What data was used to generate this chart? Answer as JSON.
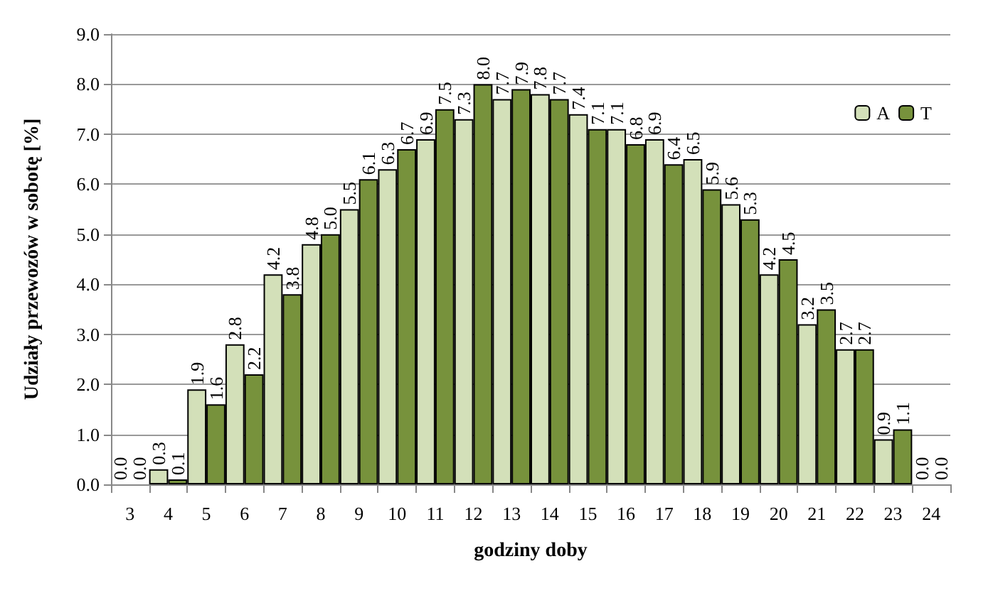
{
  "chart_data": {
    "type": "bar",
    "xlabel": "godziny doby",
    "ylabel": "Udziały przewozów w sobotę [%]",
    "categories": [
      "3",
      "4",
      "5",
      "6",
      "7",
      "8",
      "9",
      "10",
      "11",
      "12",
      "13",
      "14",
      "15",
      "16",
      "17",
      "18",
      "19",
      "20",
      "21",
      "22",
      "23",
      "24"
    ],
    "series": [
      {
        "name": "A",
        "color": "#d3e0b9",
        "values": [
          0,
          0.3,
          1.9,
          2.8,
          4.2,
          4.8,
          5.5,
          6.3,
          6.9,
          7.3,
          7.7,
          7.8,
          7.4,
          7.1,
          6.9,
          6.5,
          5.6,
          4.2,
          3.2,
          2.7,
          0.9,
          0
        ],
        "value_labels": [
          "0.0",
          "0.3",
          "1.9",
          "2.8",
          "4.2",
          "4.8",
          "5.5",
          "6.3",
          "6.9",
          "7.3",
          "7.7",
          "7.8",
          "7.4",
          "7.1",
          "6.9",
          "6.5",
          "5.6",
          "4.2",
          "3.2",
          "2.7",
          "0.9",
          "0.0"
        ]
      },
      {
        "name": "T",
        "color": "#77923c",
        "values": [
          0,
          0.1,
          1.6,
          2.2,
          3.8,
          5,
          6.1,
          6.7,
          7.5,
          8,
          7.9,
          7.7,
          7.1,
          6.8,
          6.4,
          5.9,
          5.3,
          4.5,
          3.5,
          2.7,
          1.1,
          0
        ],
        "value_labels": [
          "0.0",
          "0.1",
          "1.6",
          "2.2",
          "3.8",
          "5.0",
          "6.1",
          "6.7",
          "7.5",
          "8.0",
          "7.9",
          "7.7",
          "7.1",
          "6.8",
          "6.4",
          "5.9",
          "5.3",
          "4.5",
          "3.5",
          "2.7",
          "1.1",
          "0.0"
        ]
      }
    ],
    "ylim": [
      0,
      9
    ],
    "yticks": [
      {
        "value": 0,
        "label": "0.0"
      },
      {
        "value": 1,
        "label": "1.0"
      },
      {
        "value": 2,
        "label": "2.0"
      },
      {
        "value": 3,
        "label": "3.0"
      },
      {
        "value": 4,
        "label": "4.0"
      },
      {
        "value": 5,
        "label": "5.0"
      },
      {
        "value": 6,
        "label": "6.0"
      },
      {
        "value": 7,
        "label": "7.0"
      },
      {
        "value": 8,
        "label": "8.0"
      },
      {
        "value": 9,
        "label": "9.0"
      }
    ],
    "grid": "y",
    "legend": "top right"
  }
}
